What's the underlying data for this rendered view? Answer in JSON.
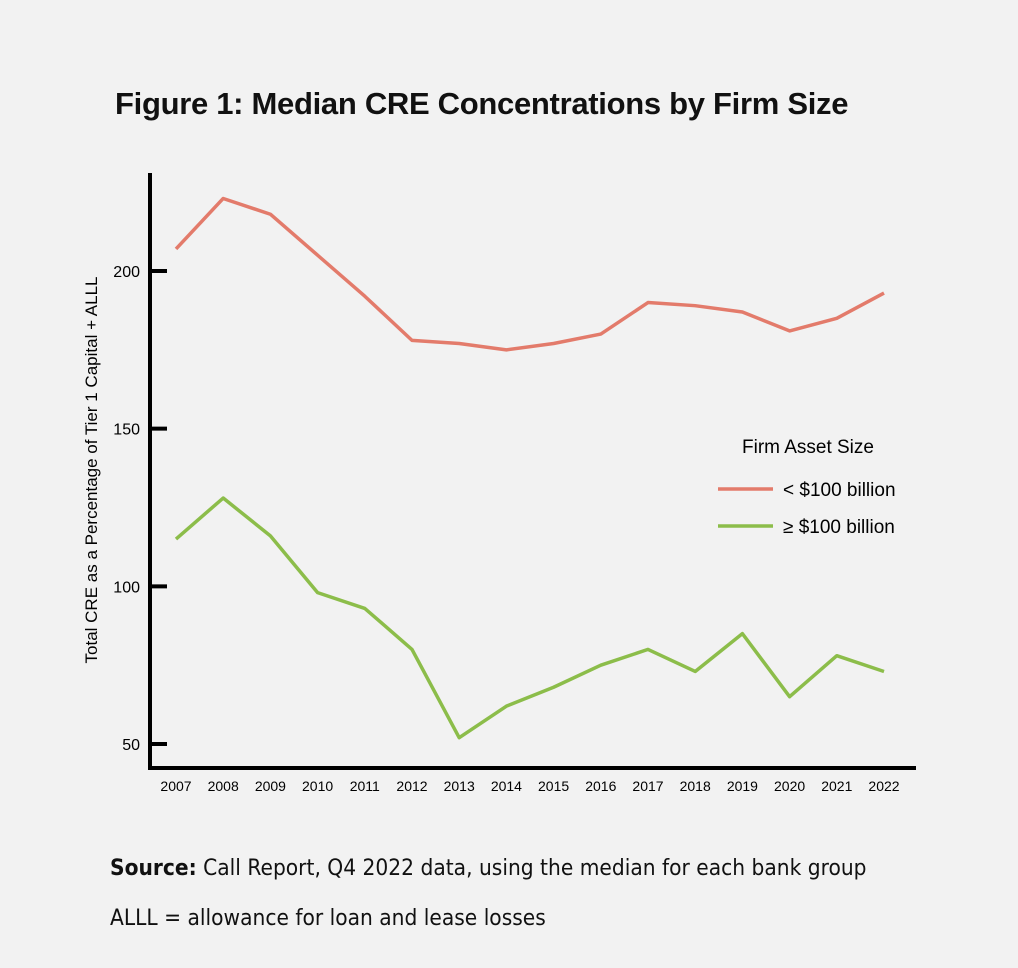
{
  "chart_data": {
    "type": "line",
    "title": "Figure 1: Median CRE Concentrations by Firm Size",
    "xlabel": "",
    "ylabel": "Total CRE as a Percentage of Tier 1 Capital + ALLL",
    "x": [
      2007,
      2008,
      2009,
      2010,
      2011,
      2012,
      2013,
      2014,
      2015,
      2016,
      2017,
      2018,
      2019,
      2020,
      2021,
      2022
    ],
    "yticks": [
      50,
      100,
      150,
      200
    ],
    "ylim": [
      47,
      230
    ],
    "grid": false,
    "legend": {
      "title": "Firm Asset Size",
      "placement": "right"
    },
    "series": [
      {
        "name": "< $100 billion",
        "color": "#e37b6b",
        "values": [
          207,
          223,
          218,
          205,
          192,
          178,
          177,
          175,
          177,
          180,
          190,
          189,
          187,
          181,
          185,
          193
        ]
      },
      {
        "name": "≥ $100 billion",
        "color": "#8cbd4a",
        "values": [
          115,
          128,
          116,
          98,
          93,
          80,
          52,
          62,
          68,
          75,
          80,
          73,
          85,
          65,
          78,
          73
        ]
      }
    ]
  },
  "notes": {
    "source_label": "Source:",
    "source_text": " Call Report, Q4 2022 data, using the median for each bank group",
    "alll_text": "ALLL = allowance for loan and lease losses"
  }
}
